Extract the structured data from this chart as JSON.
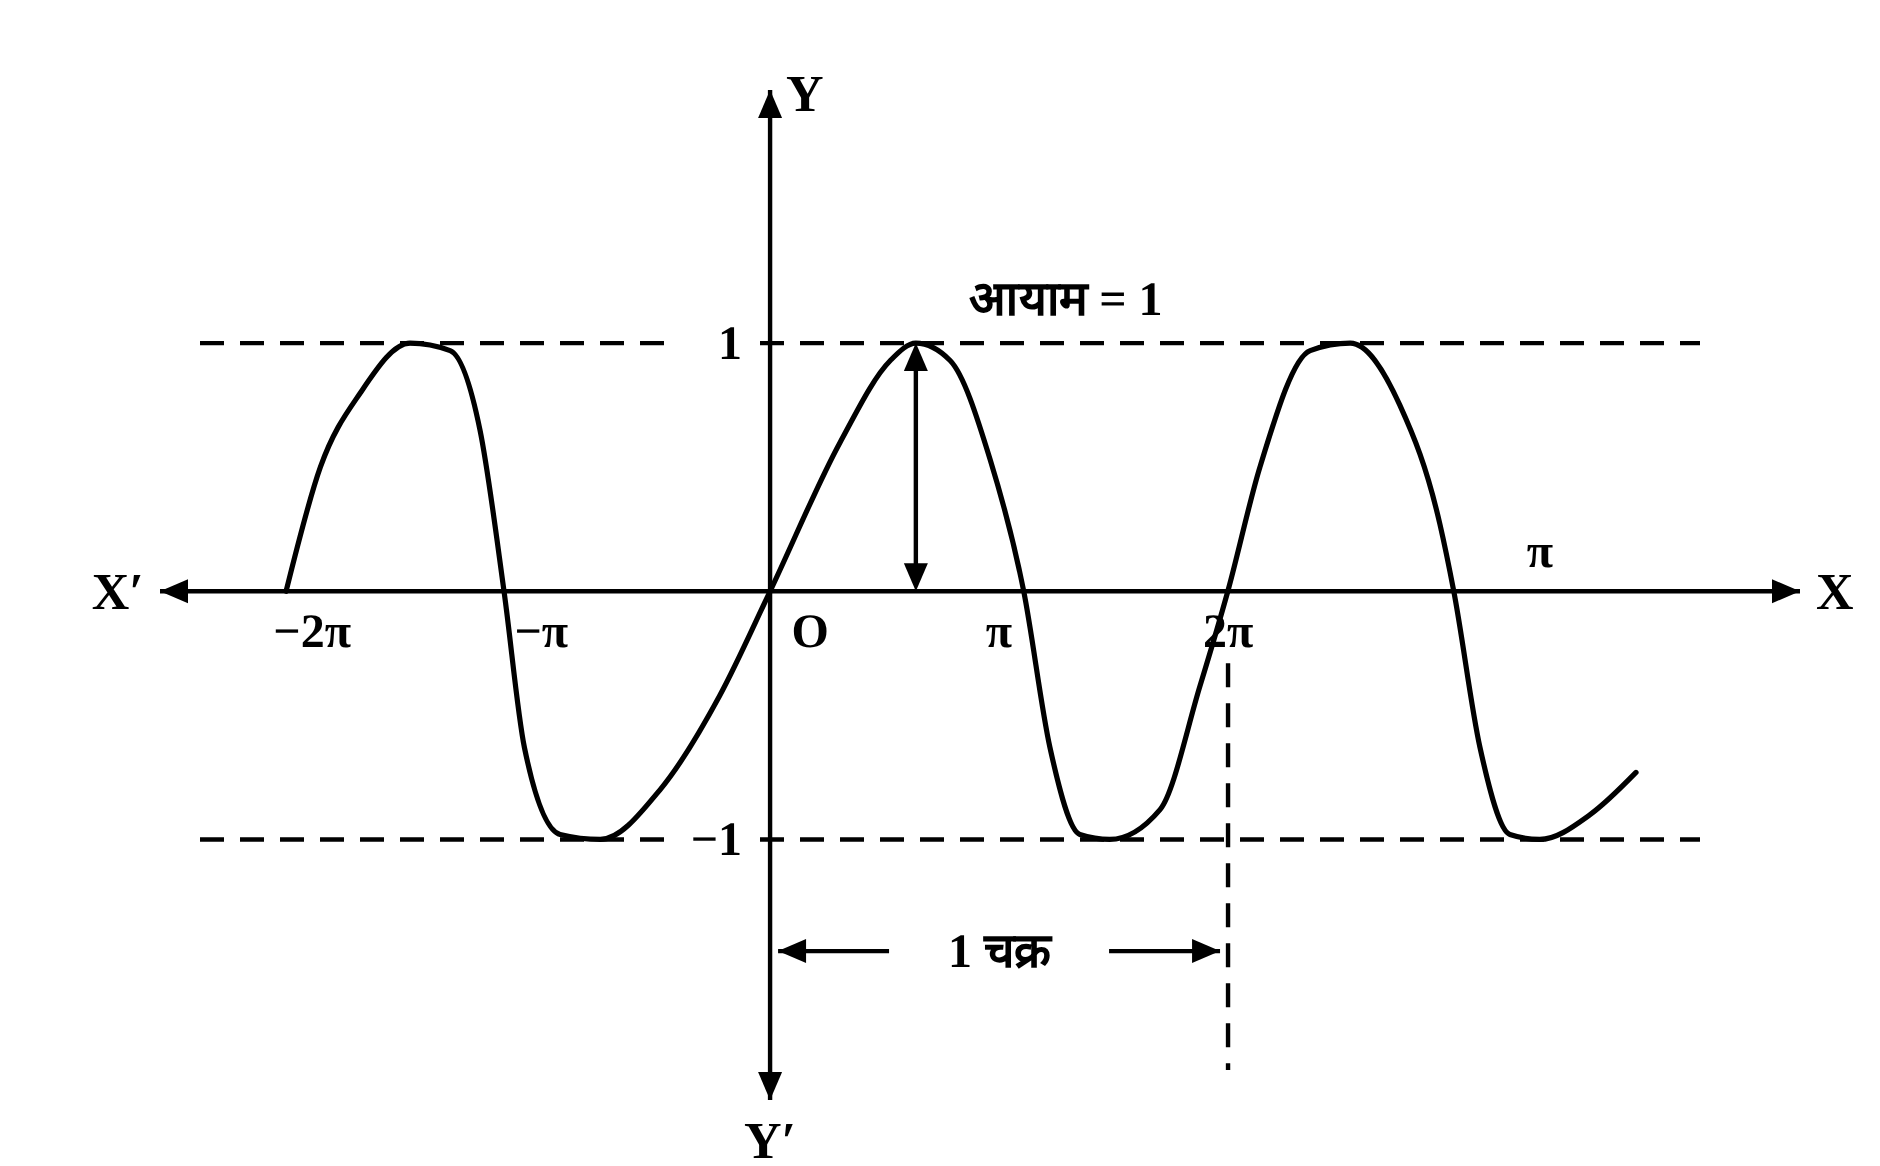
{
  "chart_data": {
    "type": "line",
    "xlabel": "X",
    "ylabel": "Y",
    "x": [
      -6.64,
      -6.17,
      -5.62,
      -4.94,
      -4.39,
      -3.98,
      -3.65,
      -3.37,
      -2.88,
      -2.33,
      -1.51,
      -0.69,
      0,
      0.96,
      1.65,
      2.0,
      2.47,
      3.02,
      3.48,
      3.84,
      4.25,
      4.66,
      5.35,
      5.9,
      6.28,
      6.72,
      7.41,
      7.96,
      8.64,
      9.19,
      9.38,
      9.74,
      10.15,
      10.56,
      11.25,
      11.88
    ],
    "series": [
      {
        "color": "#000000",
        "values": [
          0,
          0.5,
          0.8,
          1,
          0.97,
          0.65,
          0,
          -0.63,
          -0.98,
          -1,
          -0.8,
          -0.42,
          0,
          0.6,
          0.93,
          1,
          0.93,
          0.53,
          0,
          -0.63,
          -0.98,
          -1,
          -0.88,
          -0.38,
          0,
          0.5,
          0.97,
          1,
          0.75,
          0.27,
          0,
          -0.63,
          -0.98,
          -1,
          -0.9,
          -0.73
        ]
      }
    ],
    "xlim": [
      -8.37,
      14.13
    ],
    "ylim": [
      -2.05,
      2.02
    ],
    "xticks": [
      {
        "value": -6.283,
        "label": "−2π"
      },
      {
        "value": -3.14,
        "label": "−π"
      },
      {
        "value": 3.14,
        "label": "π"
      },
      {
        "value": 6.283,
        "label": "2π"
      }
    ],
    "yticks": [
      1,
      {
        "value": -1,
        "label": "−1"
      }
    ],
    "ref_lines": [
      {
        "axis": "y",
        "value": 1,
        "line_style": "dashed"
      },
      {
        "axis": "y",
        "value": -1,
        "line_style": "dashed"
      },
      {
        "axis": "x",
        "value": 6.283,
        "line_style": "dashed"
      }
    ],
    "annotations": [
      {
        "text": "आयाम = 1",
        "x": 2.0,
        "y": 1
      },
      {
        "text": "1 चक्र",
        "x": 6.283,
        "y": -1.45
      },
      "X′",
      "Y′",
      "O",
      "π"
    ],
    "grid": false,
    "marker": "none",
    "line_style": "solid"
  }
}
